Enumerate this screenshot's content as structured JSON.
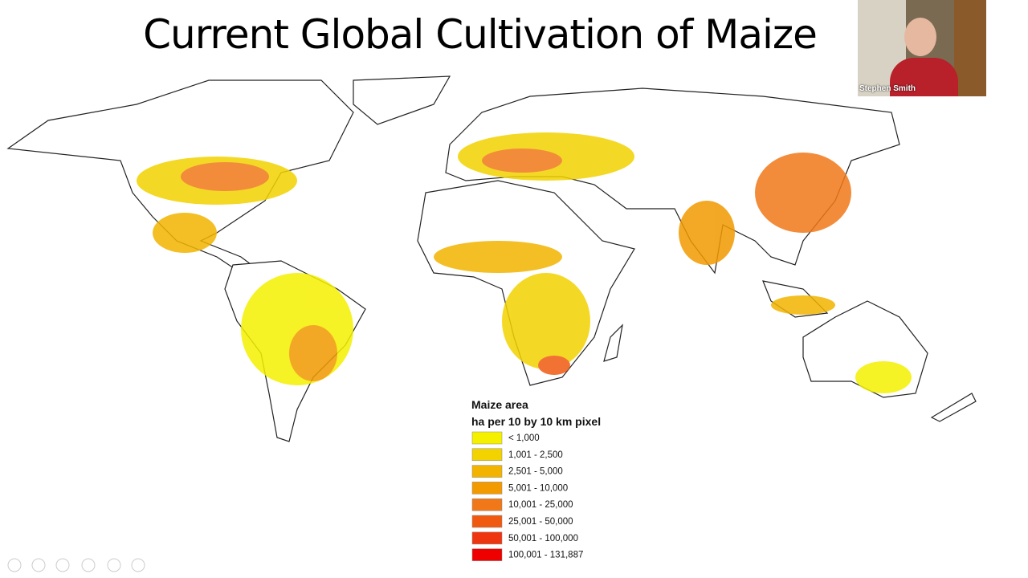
{
  "title": "Current Global Cultivation of Maize",
  "legend": {
    "title": "Maize area",
    "subtitle": "ha per 10 by 10 km pixel",
    "items": [
      {
        "label": "< 1,000",
        "color": "#f4f000"
      },
      {
        "label": "1,001 - 2,500",
        "color": "#f2d300"
      },
      {
        "label": "2,501 - 5,000",
        "color": "#f2b400"
      },
      {
        "label": "5,001 - 10,000",
        "color": "#f29a00"
      },
      {
        "label": "10,001 - 25,000",
        "color": "#f07818"
      },
      {
        "label": "25,001 - 50,000",
        "color": "#f05a10"
      },
      {
        "label": "50,001 - 100,000",
        "color": "#ef3410"
      },
      {
        "label": "100,001 - 131,887",
        "color": "#ee0000"
      }
    ]
  },
  "video": {
    "name": "Stephen Smith"
  }
}
